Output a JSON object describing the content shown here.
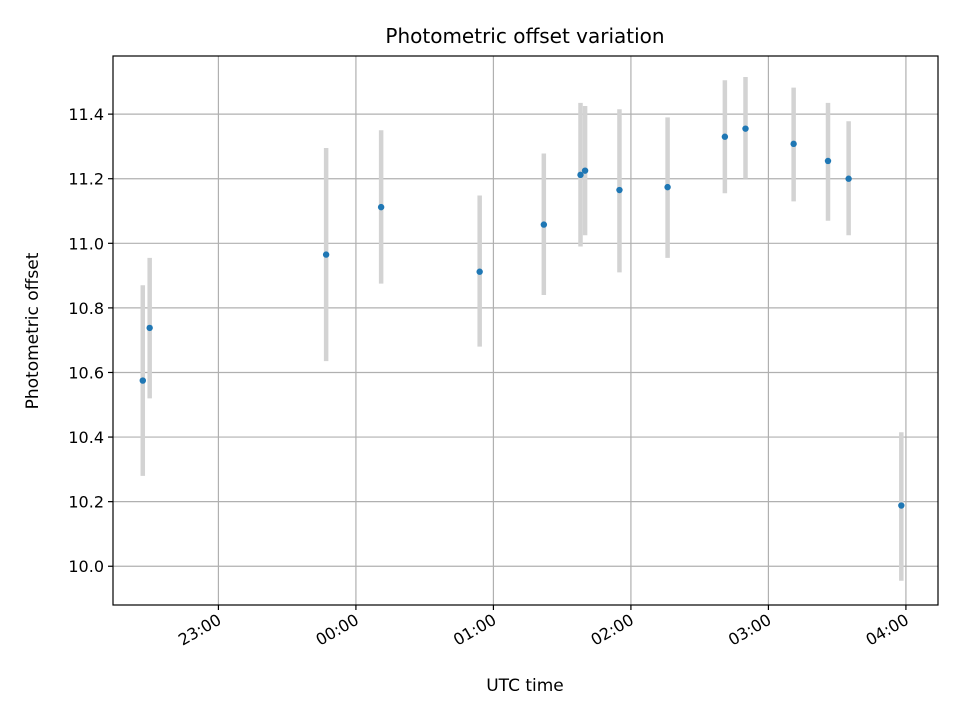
{
  "chart_data": {
    "type": "scatter",
    "title": "Photometric offset variation",
    "xlabel": "UTC time",
    "ylabel": "Photometric offset",
    "xlim": [
      "22:14",
      "04:14"
    ],
    "ylim": [
      9.88,
      11.58
    ],
    "grid": true,
    "legend": "none",
    "x_ticks": [
      "23:00",
      "00:00",
      "01:00",
      "02:00",
      "03:00",
      "04:00"
    ],
    "y_ticks": [
      "10.0",
      "10.2",
      "10.4",
      "10.6",
      "10.8",
      "11.0",
      "11.2",
      "11.4"
    ],
    "series": [
      {
        "points": [
          {
            "x": "22:27",
            "y": 10.575,
            "ylow": 10.28,
            "yhigh": 10.87
          },
          {
            "x": "22:30",
            "y": 10.738,
            "ylow": 10.52,
            "yhigh": 10.955
          },
          {
            "x": "23:47",
            "y": 10.965,
            "ylow": 10.635,
            "yhigh": 11.295
          },
          {
            "x": "00:11",
            "y": 11.112,
            "ylow": 10.875,
            "yhigh": 11.35
          },
          {
            "x": "00:54",
            "y": 10.912,
            "ylow": 10.68,
            "yhigh": 11.148
          },
          {
            "x": "01:22",
            "y": 11.058,
            "ylow": 10.84,
            "yhigh": 11.278
          },
          {
            "x": "01:38",
            "y": 11.212,
            "ylow": 10.99,
            "yhigh": 11.435
          },
          {
            "x": "01:40",
            "y": 11.225,
            "ylow": 11.025,
            "yhigh": 11.425
          },
          {
            "x": "01:55",
            "y": 11.165,
            "ylow": 10.91,
            "yhigh": 11.415
          },
          {
            "x": "02:16",
            "y": 11.174,
            "ylow": 10.955,
            "yhigh": 11.39
          },
          {
            "x": "02:41",
            "y": 11.33,
            "ylow": 11.155,
            "yhigh": 11.505
          },
          {
            "x": "02:50",
            "y": 11.355,
            "ylow": 11.2,
            "yhigh": 11.515
          },
          {
            "x": "03:11",
            "y": 11.308,
            "ylow": 11.13,
            "yhigh": 11.482
          },
          {
            "x": "03:26",
            "y": 11.255,
            "ylow": 11.07,
            "yhigh": 11.435
          },
          {
            "x": "03:35",
            "y": 11.2,
            "ylow": 11.025,
            "yhigh": 11.378
          },
          {
            "x": "03:58",
            "y": 10.188,
            "ylow": 9.955,
            "yhigh": 10.415
          }
        ]
      }
    ],
    "colors": {
      "point": "#1f77b4",
      "errorbar": "#d3d3d3",
      "grid": "#b0b0b0",
      "axes": "#000000"
    }
  }
}
